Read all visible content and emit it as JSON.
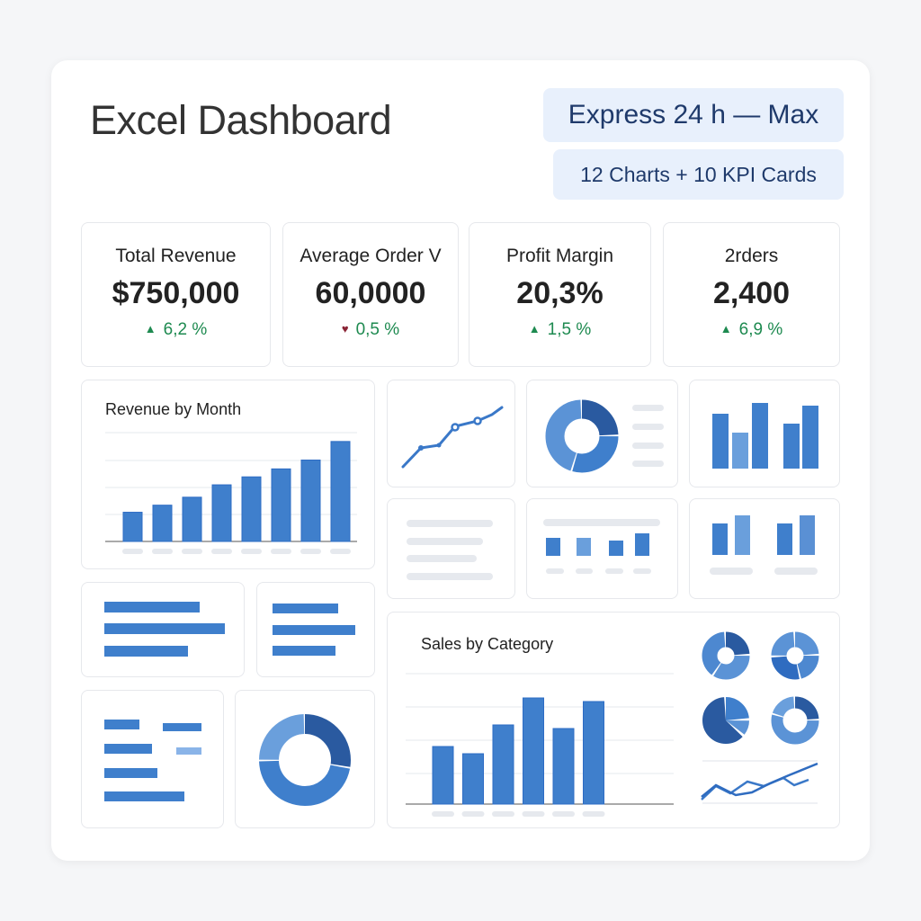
{
  "header": {
    "title": "Excel Dashboard",
    "badge_primary": "Express 24 h — Max",
    "badge_secondary": "12 Charts + 10 KPI Cards"
  },
  "kpis": [
    {
      "label": "Total Revenue",
      "value": "$750,000",
      "change": "6,2 %",
      "trend_icon": "triangle-up-icon",
      "icon_color": "#1e8a50"
    },
    {
      "label": "Average Order V",
      "value": "60,0000",
      "change": "0,5 %",
      "trend_icon": "heart-icon",
      "icon_color": "#8a2435"
    },
    {
      "label": "Profit Margin",
      "value": "20,3%",
      "change": "1,5 %",
      "trend_icon": "triangle-up-icon",
      "icon_color": "#1e8a50"
    },
    {
      "label": "2rders",
      "value": "2,400",
      "change": "6,9 %",
      "trend_icon": "triangle-up-icon",
      "icon_color": "#1e8a50"
    }
  ],
  "colors": {
    "accent": "#3f7fcc",
    "accent_light": "#6a9fdc",
    "accent_dark": "#2a5aa0",
    "placeholder": "#e6e9ee",
    "positive": "#1e8a50"
  },
  "chart_data": [
    {
      "type": "bar",
      "title": "Revenue by Month",
      "categories": [
        "",
        "",
        "",
        "",
        "",
        "",
        "",
        ""
      ],
      "values": [
        33,
        41,
        50,
        64,
        73,
        82,
        92,
        113
      ],
      "ylim": [
        0,
        122
      ],
      "grid": true
    },
    {
      "type": "bar",
      "title": "Sales by Category",
      "categories": [
        "",
        "",
        "",
        "",
        "",
        ""
      ],
      "values": [
        64,
        56,
        88,
        118,
        84,
        114
      ],
      "ylim": [
        0,
        145
      ],
      "grid": true
    }
  ]
}
